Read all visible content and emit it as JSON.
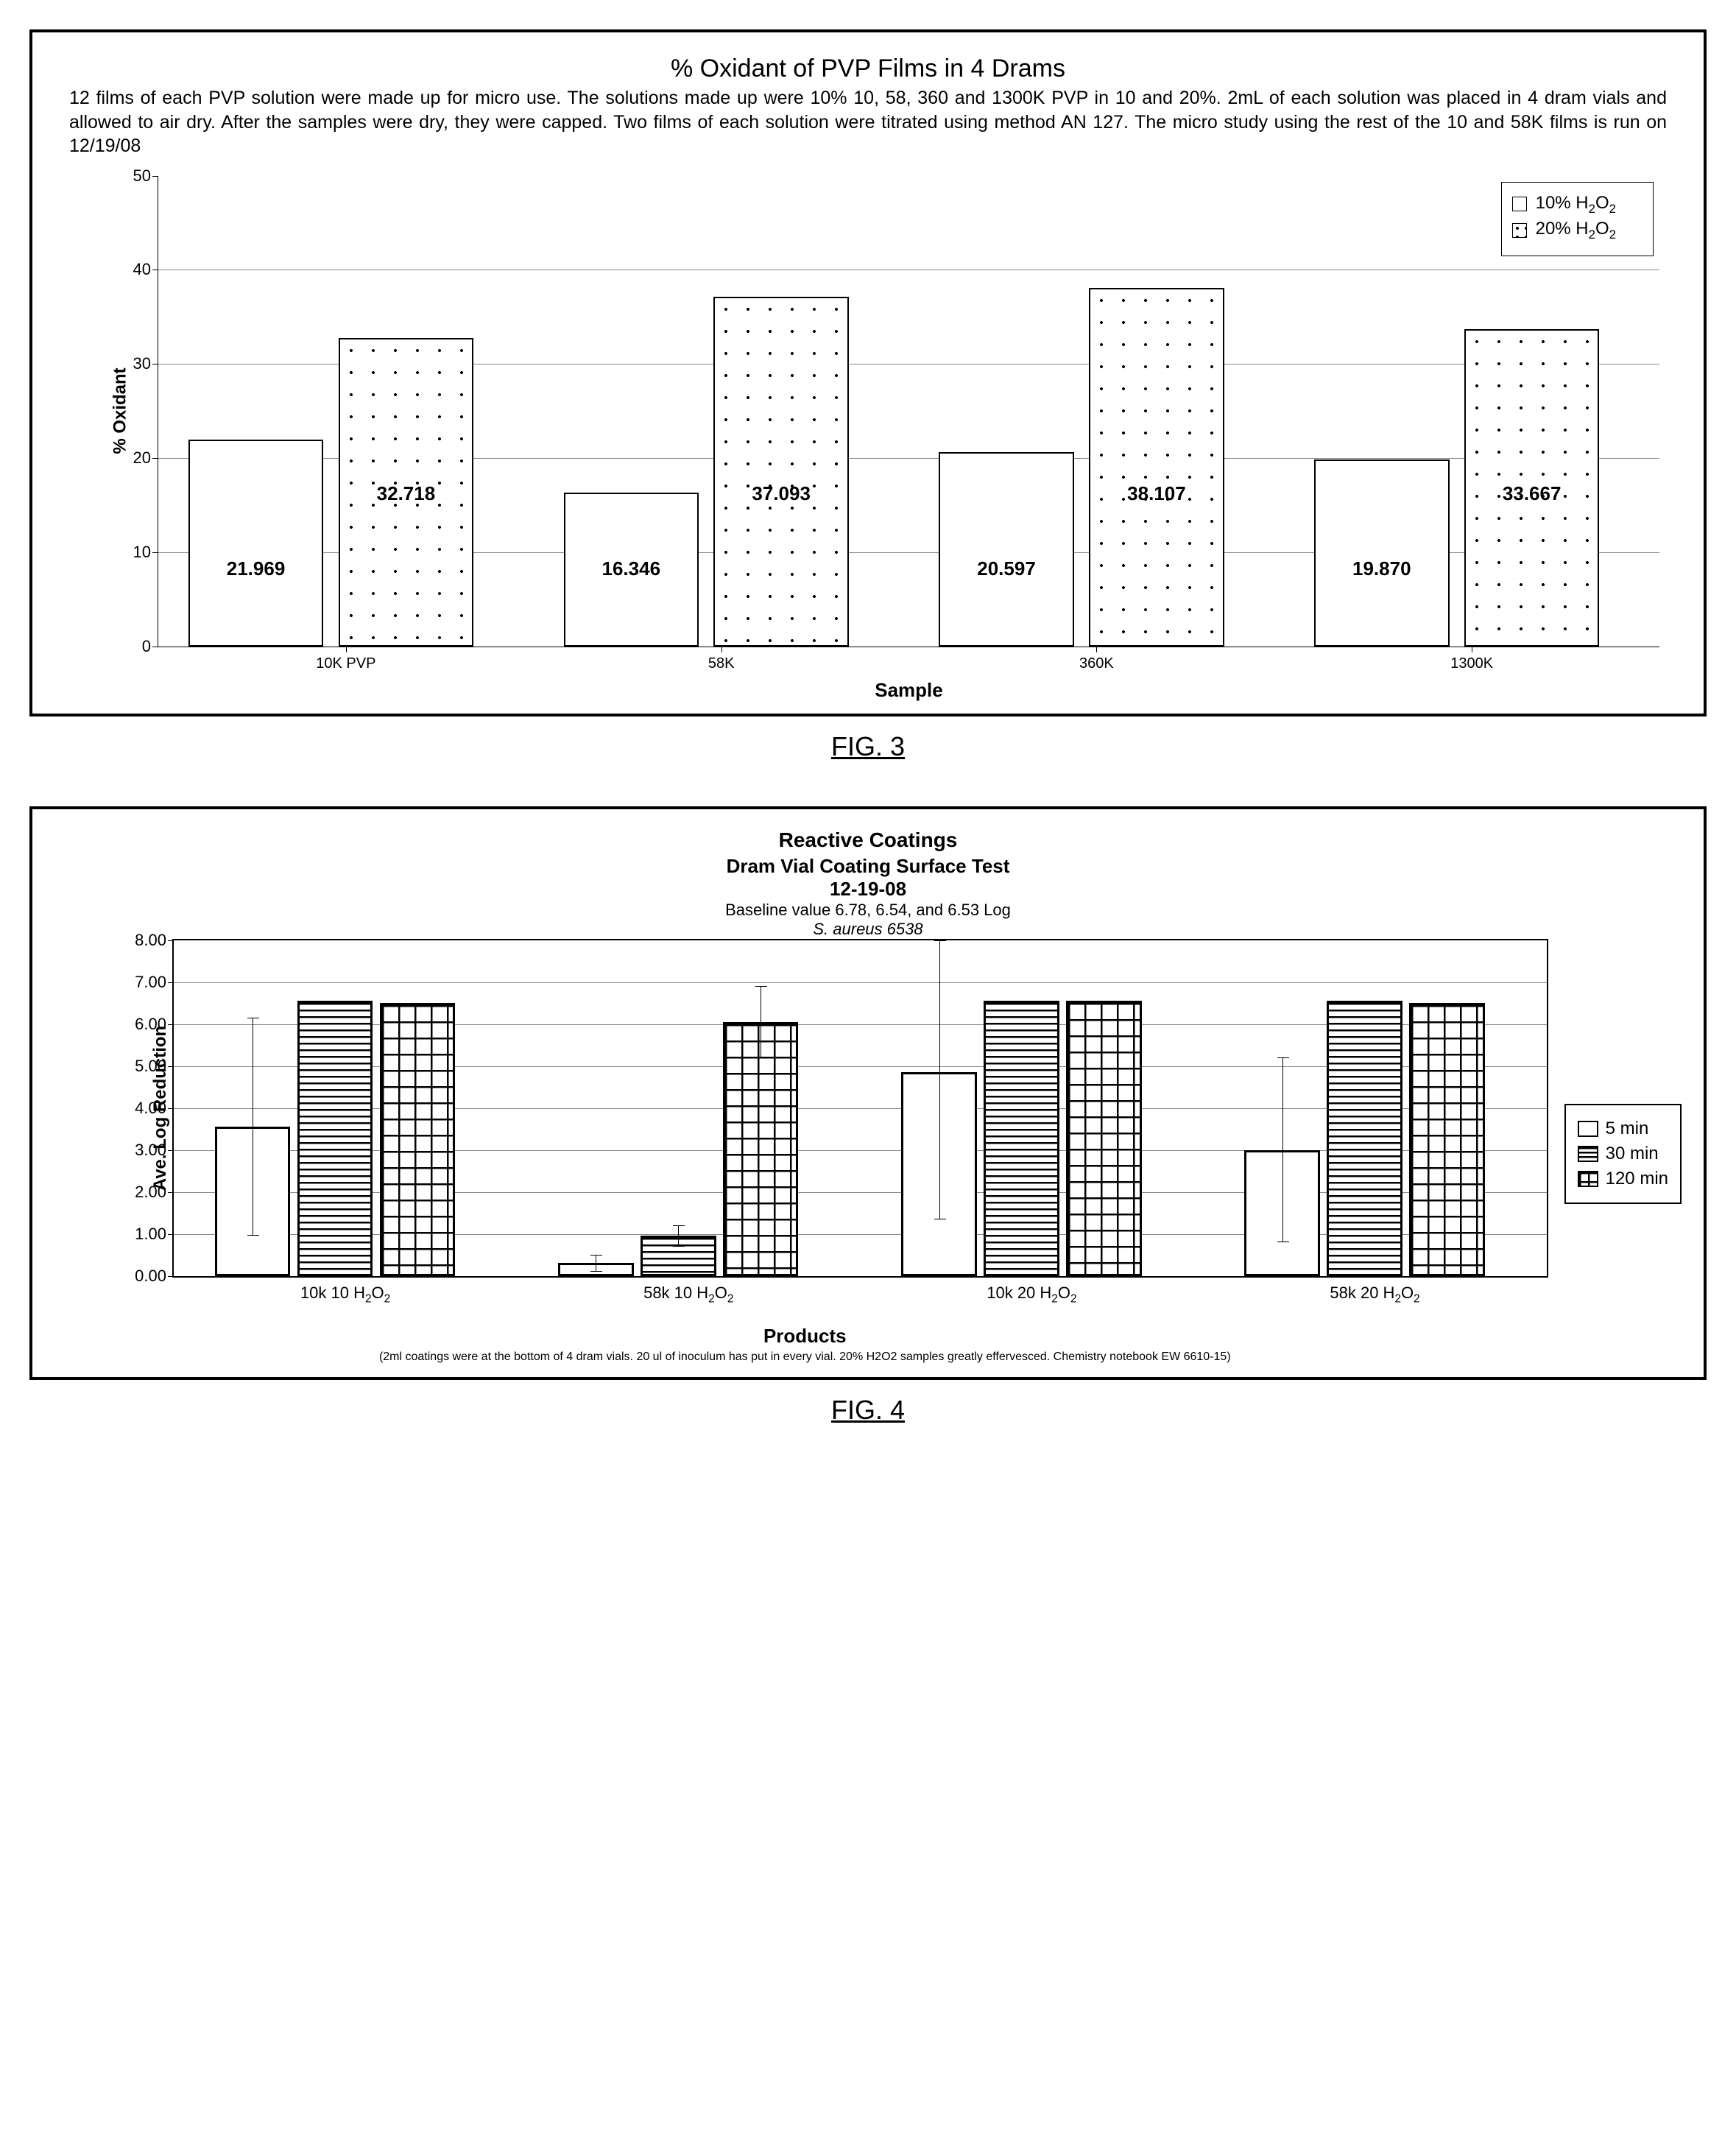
{
  "fig1": {
    "caption": "FIG. 3",
    "title": "% Oxidant of PVP Films in 4 Drams",
    "description": "12 films of each PVP solution were made up for micro use. The solutions made up were 10% 10, 58, 360 and 1300K PVP in 10 and 20%. 2mL of each solution was placed in 4 dram vials and allowed to air dry.  After the samples were dry, they were capped.  Two films of each solution were titrated using method AN 127.  The micro study using the rest of the 10 and 58K films is run on 12/19/08",
    "type": "grouped-bar",
    "ylabel": "% Oxidant",
    "xlabel": "Sample",
    "ylim": [
      0,
      50
    ],
    "ytick_step": 10,
    "categories": [
      "10K PVP",
      "58K",
      "360K",
      "1300K"
    ],
    "series": [
      {
        "name": "10% H2O2",
        "pattern": "plain",
        "values": [
          21.969,
          16.346,
          20.597,
          19.87
        ],
        "labels": [
          "21.969",
          "16.346",
          "20.597",
          "19.870"
        ]
      },
      {
        "name": "20% H2O2",
        "pattern": "dots",
        "values": [
          32.718,
          37.093,
          38.107,
          33.667
        ],
        "labels": [
          "32.718",
          "37.093",
          "38.107",
          "33.667"
        ]
      }
    ],
    "bar_border_color": "#000000",
    "grid_color": "#888888",
    "background_color": "#ffffff",
    "legend": [
      "10% H₂O₂",
      "20% H₂O₂"
    ],
    "bar_width_pct": 36,
    "label_fontsize": 26,
    "title_fontsize": 34,
    "desc_fontsize": 25
  },
  "fig2": {
    "caption": "FIG. 4",
    "title1": "Reactive Coatings",
    "title2": "Dram Vial Coating Surface Test",
    "title3": "12-19-08",
    "subtitle1": "Baseline value 6.78, 6.54, and 6.53 Log",
    "subtitle2": "S. aureus 6538",
    "type": "grouped-bar",
    "ylabel": "Ave. Log Reduction",
    "xlabel": "Products",
    "footnote": "(2ml coatings were at the bottom of 4 dram vials. 20 ul of inoculum has put in every vial. 20% H2O2 samples greatly effervesced. Chemistry notebook EW 6610-15)",
    "ylim": [
      0,
      8
    ],
    "ytick_step": 1,
    "ytick_format": "0.00",
    "categories": [
      "10k  10  H₂O₂",
      "58k  10  H₂O₂",
      "10k  20  H₂O₂",
      "58k  20  H₂O₂"
    ],
    "series": [
      {
        "name": "5 min",
        "pattern": "plain",
        "values": [
          3.55,
          0.3,
          4.85,
          3.0
        ],
        "err": [
          2.6,
          0.2,
          3.5,
          2.2
        ]
      },
      {
        "name": "30 min",
        "pattern": "hlines",
        "values": [
          6.55,
          0.95,
          6.55,
          6.55
        ],
        "err": [
          0.0,
          0.25,
          0.0,
          0.0
        ]
      },
      {
        "name": "120 min",
        "pattern": "grid",
        "values": [
          6.5,
          6.05,
          6.55,
          6.5
        ],
        "err": [
          0.0,
          0.85,
          0.0,
          0.0
        ]
      }
    ],
    "bar_border_color": "#000000",
    "grid_color": "#888888",
    "background_color": "#ffffff",
    "legend": [
      "5 min",
      "30 min",
      "120 min"
    ],
    "bar_width_pct": 22
  }
}
